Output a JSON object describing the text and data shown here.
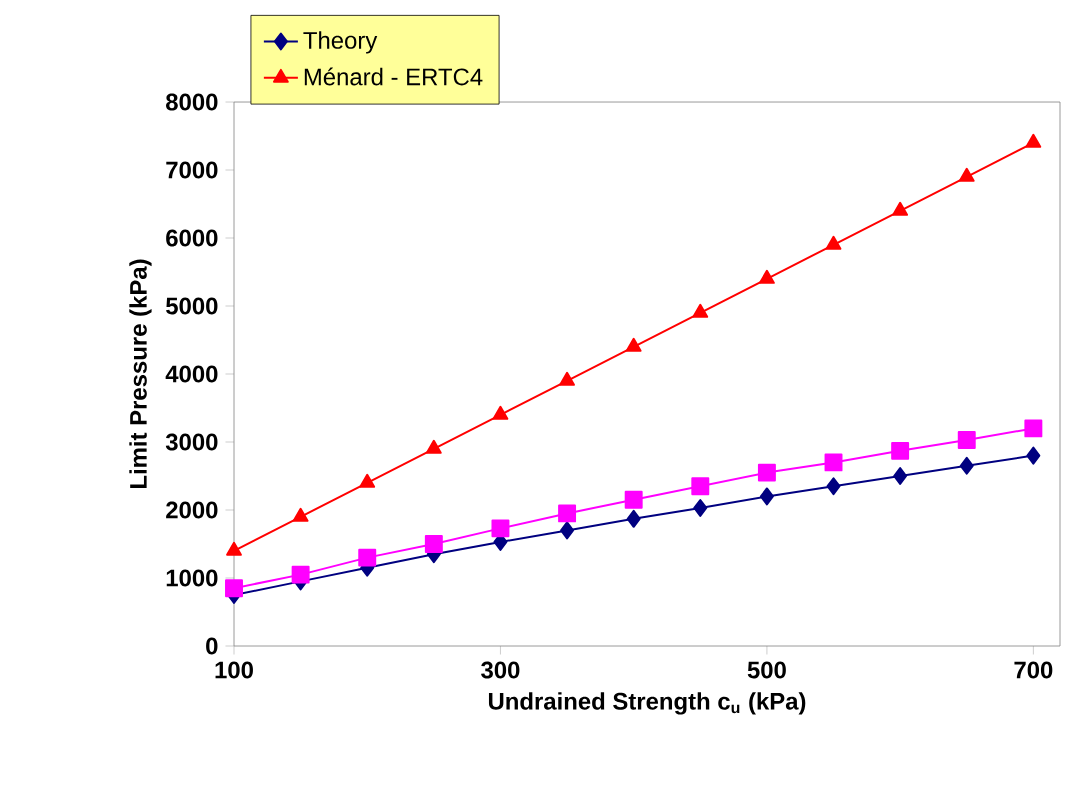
{
  "chart_data": {
    "type": "line",
    "xlabel": "Undrained Strength c$_{u}$ (kPa)",
    "ylabel": "Limit Pressure (kPa)",
    "x": [
      100,
      150,
      200,
      250,
      300,
      350,
      400,
      450,
      500,
      550,
      600,
      650,
      700
    ],
    "xlim": [
      100,
      720
    ],
    "xticks": [
      100,
      300,
      500,
      700
    ],
    "ylim": [
      0,
      8000
    ],
    "yticks": [
      0,
      1000,
      2000,
      3000,
      4000,
      5000,
      6000,
      7000,
      8000
    ],
    "legend": "top left",
    "grid": false,
    "series": [
      {
        "name": "Theory",
        "color": "#000080",
        "marker": "diamond",
        "values": [
          750,
          950,
          1150,
          1350,
          1530,
          1700,
          1870,
          2030,
          2200,
          2350,
          2500,
          2650,
          2800
        ]
      },
      {
        "color": "#ff00ff",
        "marker": "square",
        "values": [
          850,
          1050,
          1300,
          1500,
          1730,
          1950,
          2150,
          2350,
          2550,
          2700,
          2870,
          3030,
          3200
        ]
      },
      {
        "name": "Ménard - ERTC4",
        "color": "#ff0000",
        "marker": "triangle",
        "values": [
          1400,
          1900,
          2400,
          2900,
          3400,
          3900,
          4400,
          4900,
          5400,
          5900,
          6400,
          6900,
          7400
        ]
      }
    ]
  }
}
